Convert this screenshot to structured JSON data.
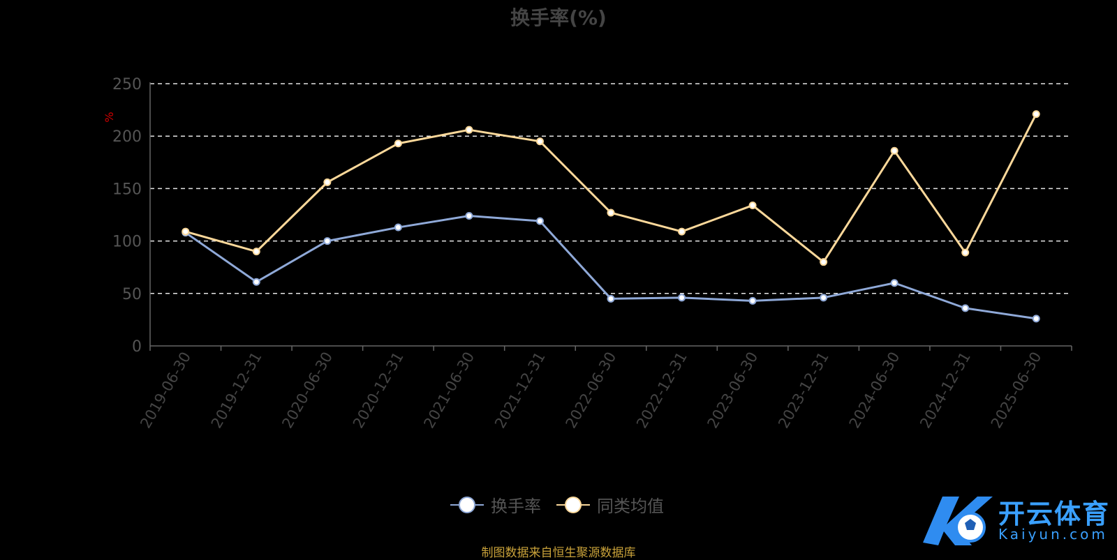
{
  "chart_data": {
    "type": "line",
    "title": "换手率(%)",
    "ylabel": "%",
    "ylim": [
      0,
      250
    ],
    "yticks": [
      "0",
      "50",
      "100",
      "150",
      "200",
      "250"
    ],
    "grid": true,
    "legend_placement": "bottom",
    "categories": [
      "2019-06-30",
      "2019-12-31",
      "2020-06-30",
      "2020-12-31",
      "2021-06-30",
      "2021-12-31",
      "2022-06-30",
      "2022-12-31",
      "2023-06-30",
      "2023-12-31",
      "2024-06-30",
      "2024-12-31",
      "2025-06-30"
    ],
    "series": [
      {
        "name": "换手率",
        "color": "#8fa9d8",
        "values": [
          108,
          61,
          100,
          113,
          124,
          119,
          45,
          46,
          43,
          46,
          60,
          36,
          26
        ]
      },
      {
        "name": "同类均值",
        "color": "#fbd89a",
        "values": [
          109,
          90,
          156,
          193,
          206,
          195,
          127,
          109,
          134,
          80,
          186,
          89,
          221
        ]
      }
    ]
  },
  "source_note": "制图数据来自恒生聚源数据库",
  "watermark": {
    "name": "开云体育",
    "domain": "Kaiyun.com",
    "color": "#3aa0ff"
  }
}
